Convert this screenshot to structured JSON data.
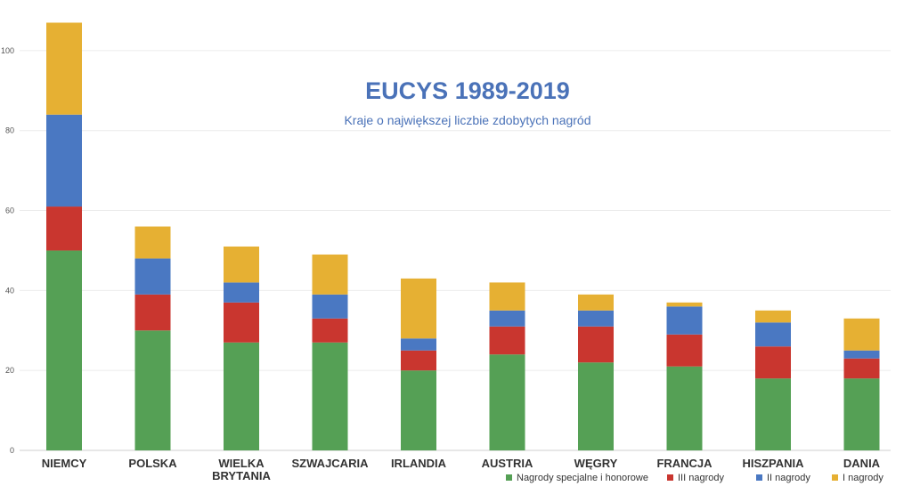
{
  "chart_data": {
    "type": "bar",
    "stacked": true,
    "title": "EUCYS 1989-2019",
    "subtitle": "Kraje o największej liczbie zdobytych nagród",
    "categories": [
      "NIEMCY",
      "POLSKA",
      "WIELKA BRYTANIA",
      "SZWAJCARIA",
      "IRLANDIA",
      "AUSTRIA",
      "WĘGRY",
      "FRANCJA",
      "HISZPANIA",
      "DANIA"
    ],
    "series": [
      {
        "name": "Nagrody specjalne i honorowe",
        "color": "#55a055",
        "values": [
          50,
          30,
          27,
          27,
          20,
          24,
          22,
          21,
          18,
          18
        ]
      },
      {
        "name": "III nagrody",
        "color": "#c9362f",
        "values": [
          11,
          9,
          10,
          6,
          5,
          7,
          9,
          8,
          8,
          5
        ]
      },
      {
        "name": "II nagrody",
        "color": "#4a78c2",
        "values": [
          23,
          9,
          5,
          6,
          3,
          4,
          4,
          7,
          6,
          2
        ]
      },
      {
        "name": "I nagrody",
        "color": "#e6b033",
        "values": [
          23,
          8,
          9,
          10,
          15,
          7,
          4,
          1,
          3,
          8
        ]
      }
    ],
    "yticks": [
      0,
      20,
      40,
      60,
      80,
      100
    ],
    "ylim": [
      0,
      110
    ],
    "grid": true,
    "legend_position": "bottom-right",
    "title_color": "#4a72b8",
    "subtitle_color": "#4a72b8"
  }
}
